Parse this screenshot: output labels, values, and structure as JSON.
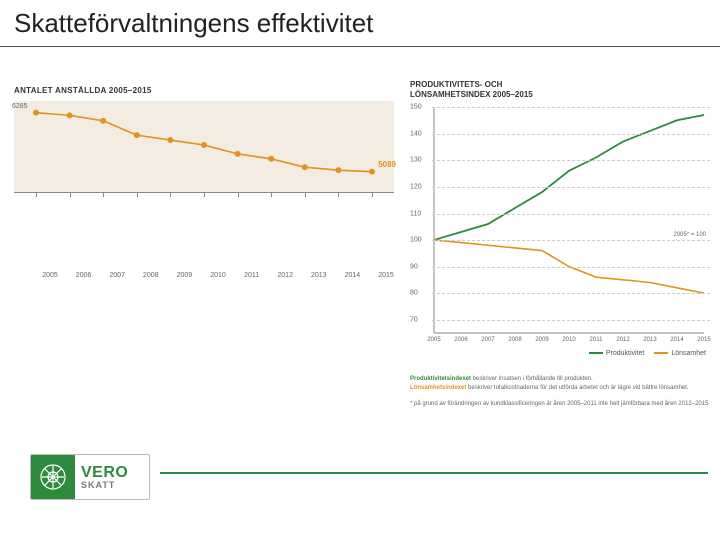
{
  "title": "Skatteförvaltningens effektivitet",
  "chart_left": {
    "type": "line",
    "title": "ANTALET ANSTÄLLDA 2005–2015",
    "background_color": "#f2ece2",
    "line_color": "#e0941c",
    "line_width": 1.6,
    "marker_style": "circle",
    "marker_size": 3,
    "years": [
      2005,
      2006,
      2007,
      2008,
      2009,
      2010,
      2011,
      2012,
      2013,
      2014,
      2015
    ],
    "values": [
      6285,
      6230,
      6120,
      5830,
      5730,
      5630,
      5450,
      5350,
      5180,
      5120,
      5089
    ],
    "start_label": "6285",
    "end_label": "5089",
    "end_label_color": "#e0941c",
    "axis_color": "#888888",
    "xlabel_color": "#666666",
    "xlabel_fontsize": 7,
    "ylim": [
      4900,
      6400
    ]
  },
  "chart_right": {
    "type": "line",
    "title_line1": "PRODUKTIVITETS- OCH",
    "title_line2": "LÖNSAMHETSINDEX 2005–2015",
    "background_color": "#ffffff",
    "grid_color": "#cccccc",
    "years": [
      2005,
      2006,
      2007,
      2008,
      2009,
      2010,
      2011,
      2012,
      2013,
      2014,
      2015
    ],
    "ylim": [
      65,
      150
    ],
    "yticks": [
      70,
      80,
      90,
      100,
      110,
      120,
      130,
      140,
      150
    ],
    "baseline_label": "2005* = 100",
    "series": [
      {
        "name": "Produktivitet",
        "color": "#2e8b3e",
        "line_width": 1.8,
        "values": [
          100,
          103,
          106,
          112,
          118,
          126,
          131,
          137,
          141,
          145,
          147
        ]
      },
      {
        "name": "Lönsamhet",
        "color": "#e0941c",
        "line_width": 1.6,
        "values": [
          100,
          99,
          98,
          97,
          96,
          90,
          86,
          85,
          84,
          82,
          80
        ]
      }
    ],
    "legend": [
      {
        "label": "Produktivitet",
        "color": "#2e8b3e"
      },
      {
        "label": "Lönsamhet",
        "color": "#e0941c"
      }
    ],
    "caption": {
      "k1": "Produktivitetsindexet",
      "t1": " beskriver insatsen i förhållande till produkten.",
      "k2": "Lönsamhetsindexet",
      "t2": " beskriver totalkostnaderna för det utförda arbetet och är lägre vid bättre lönsamhet.",
      "foot": "* på grund av förändringen av kundklassificeringen är åren 2005–2011 inte helt jämförbara med åren 2012–2015"
    }
  },
  "footer": {
    "line_color": "#2e8b3e",
    "logo_text1": "VERO",
    "logo_text2": "SKATT",
    "logo_bg": "#2e8b3e"
  }
}
